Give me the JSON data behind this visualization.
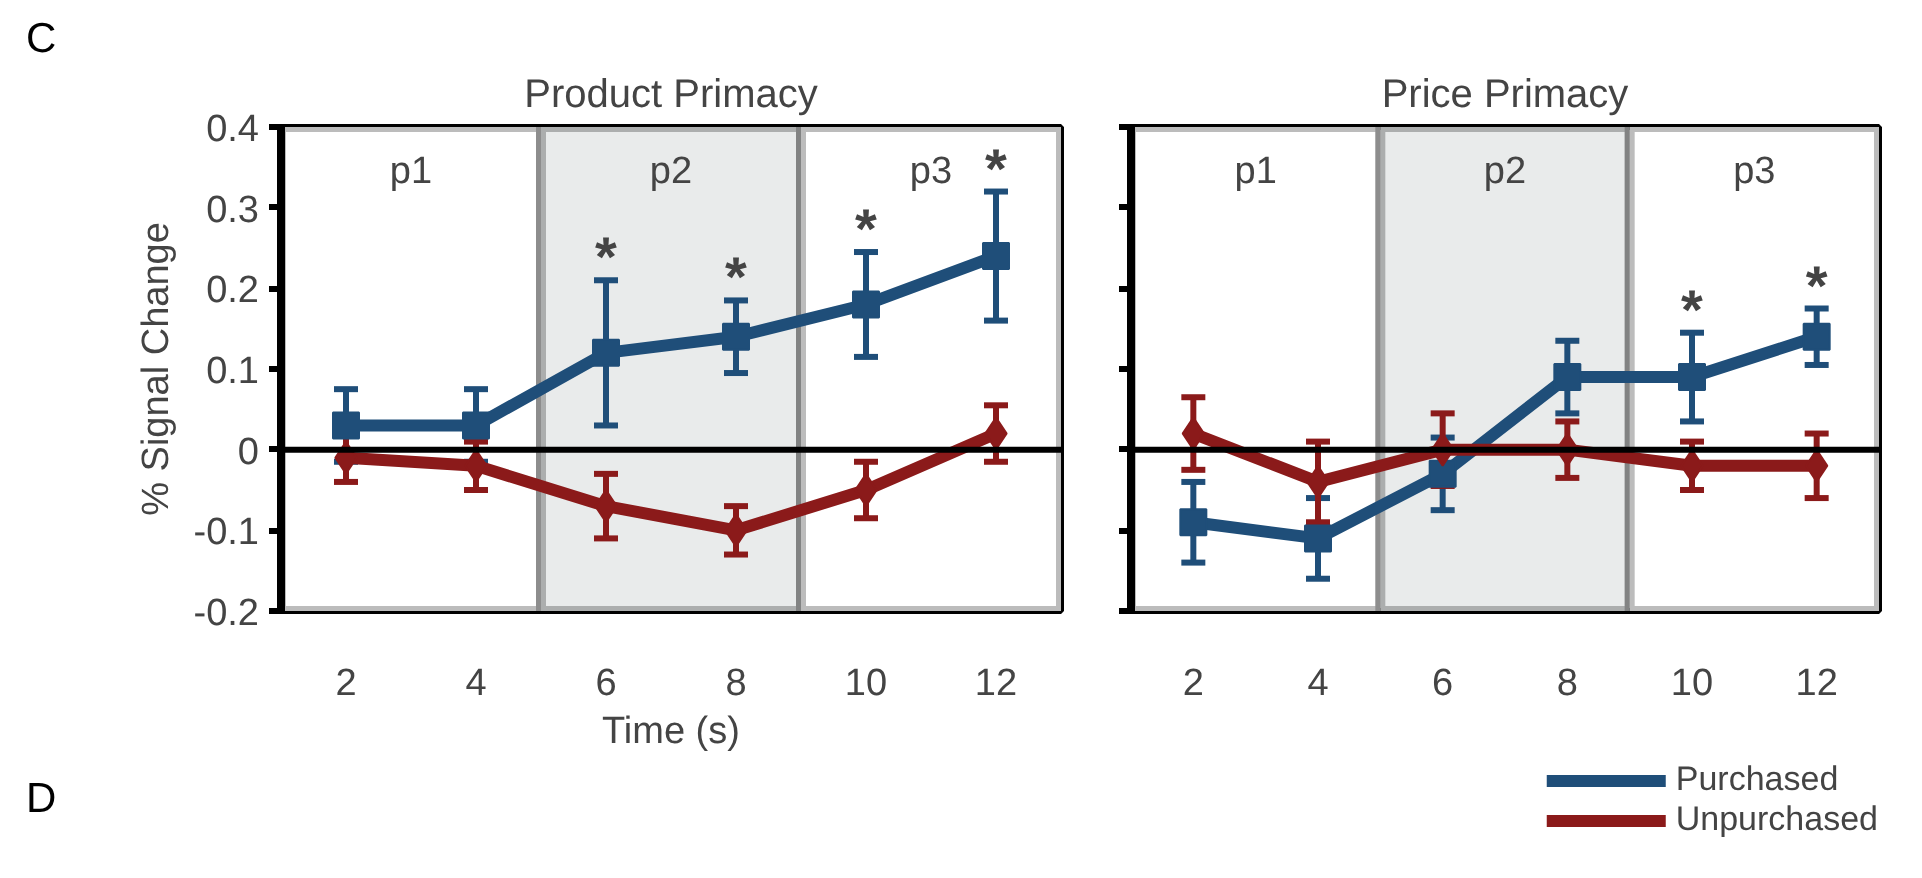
{
  "chart_data": [
    {
      "type": "line",
      "title": "Product Primacy",
      "ylabel": "% Signal Change",
      "xlabel": "Time (s)",
      "x": [
        2,
        4,
        6,
        8,
        10,
        12
      ],
      "xlim": [
        1,
        13
      ],
      "xticks": [
        2,
        4,
        6,
        8,
        10,
        12
      ],
      "ylim": [
        -0.2,
        0.4
      ],
      "yticks": [
        -0.2,
        -0.1,
        0,
        0.1,
        0.2,
        0.3,
        0.4
      ],
      "legend": false,
      "line_style": "solid",
      "series": [
        {
          "color": "#1f4e79",
          "marker": "square",
          "values": [
            0.03,
            0.03,
            0.12,
            0.14,
            0.18,
            0.24
          ],
          "errors": [
            0.045,
            0.045,
            0.09,
            0.045,
            0.065,
            0.08
          ]
        },
        {
          "color": "#8b1a1a",
          "marker": "diamond",
          "values": [
            -0.01,
            -0.02,
            -0.07,
            -0.1,
            -0.05,
            0.02
          ],
          "errors": [
            0.03,
            0.03,
            0.04,
            0.03,
            0.035,
            0.035
          ]
        }
      ],
      "ref_lines": [
        {
          "axis": "y",
          "value": 0,
          "color": "#000000"
        }
      ],
      "bands": [
        {
          "axis": "x",
          "from": 1,
          "to": 5,
          "label": "p1",
          "color": "#ffffff"
        },
        {
          "axis": "x",
          "from": 5,
          "to": 9,
          "label": "p2",
          "color": "#e9ebeb"
        },
        {
          "axis": "x",
          "from": 9,
          "to": 13,
          "label": "p3",
          "color": "#ffffff"
        }
      ],
      "annotations": [
        "C",
        "D",
        {
          "text": "*",
          "x": 6,
          "y": 0.12
        },
        {
          "text": "*",
          "x": 8,
          "y": 0.14
        },
        {
          "text": "*",
          "x": 10,
          "y": 0.18
        },
        {
          "text": "*",
          "x": 12,
          "y": 0.24
        }
      ]
    },
    {
      "type": "line",
      "title": "Price Primacy",
      "x": [
        2,
        4,
        6,
        8,
        10,
        12
      ],
      "xlim": [
        1,
        13
      ],
      "xticks": [
        2,
        4,
        6,
        8,
        10,
        12
      ],
      "ylim": [
        -0.2,
        0.4
      ],
      "yticks": [
        -0.2,
        -0.1,
        0,
        0.1,
        0.2,
        0.3,
        0.4
      ],
      "tick_labels": "x",
      "legend": "bottom right",
      "line_style": "solid",
      "series": [
        {
          "name": "Purchased",
          "color": "#1f4e79",
          "marker": "square",
          "values": [
            -0.09,
            -0.11,
            -0.03,
            0.09,
            0.09,
            0.14
          ],
          "errors": [
            0.05,
            0.05,
            0.045,
            0.045,
            0.055,
            0.035
          ]
        },
        {
          "name": "Unpurchased",
          "color": "#8b1a1a",
          "marker": "diamond",
          "values": [
            0.02,
            -0.04,
            0,
            0,
            -0.02,
            -0.02
          ],
          "errors": [
            0.045,
            0.05,
            0.045,
            0.035,
            0.03,
            0.04
          ]
        }
      ],
      "ref_lines": [
        {
          "axis": "y",
          "value": 0,
          "color": "#000000"
        }
      ],
      "bands": [
        {
          "axis": "x",
          "from": 1,
          "to": 5,
          "label": "p1",
          "color": "#ffffff"
        },
        {
          "axis": "x",
          "from": 5,
          "to": 9,
          "label": "p2",
          "color": "#e9ebeb"
        },
        {
          "axis": "x",
          "from": 9,
          "to": 13,
          "label": "p3",
          "color": "#ffffff"
        }
      ],
      "annotations": [
        {
          "text": "*",
          "x": 10,
          "y": 0.09
        },
        {
          "text": "*",
          "x": 12,
          "y": 0.14
        }
      ]
    }
  ]
}
